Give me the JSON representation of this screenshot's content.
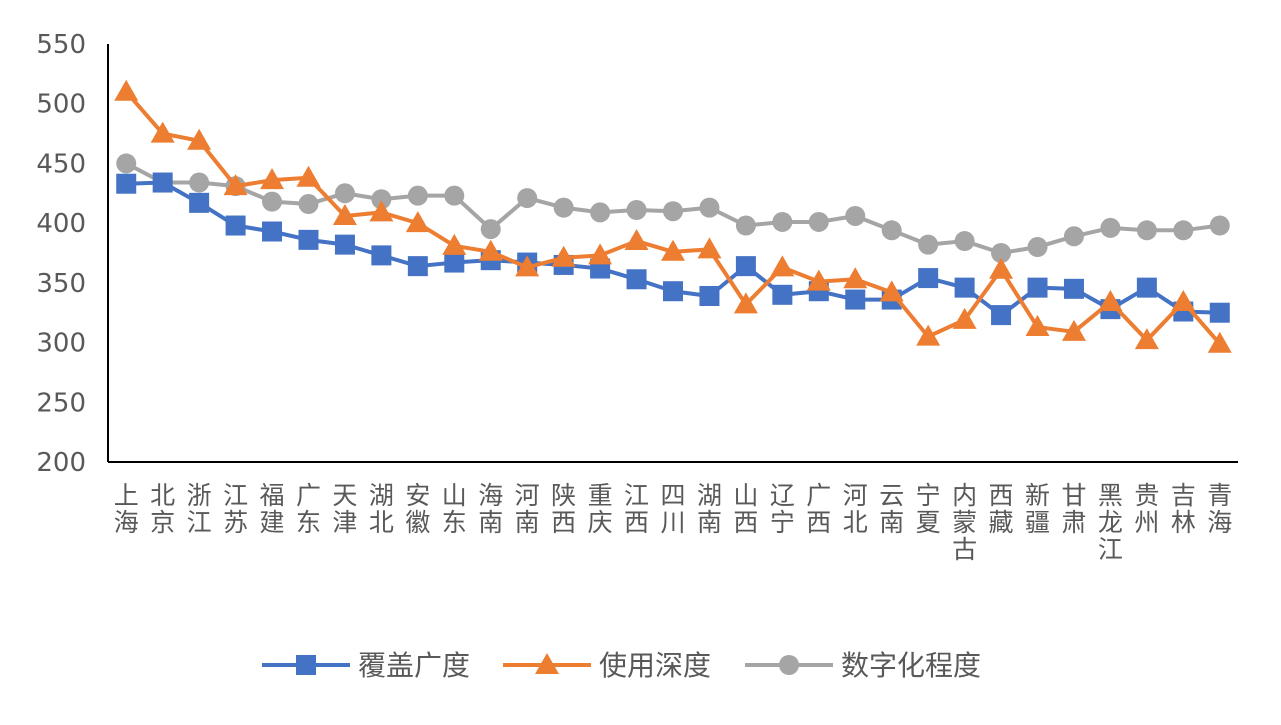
{
  "chart_data": {
    "type": "line",
    "title": "",
    "xlabel": "",
    "ylabel": "",
    "ylim": [
      200,
      550
    ],
    "yticks": [
      200,
      250,
      300,
      350,
      400,
      450,
      500,
      550
    ],
    "grid": false,
    "legend_position": "bottom",
    "categories": [
      "上海",
      "北京",
      "浙江",
      "江苏",
      "福建",
      "广东",
      "天津",
      "湖北",
      "安徽",
      "山东",
      "海南",
      "河南",
      "陕西",
      "重庆",
      "江西",
      "四川",
      "湖南",
      "山西",
      "辽宁",
      "广西",
      "河北",
      "云南",
      "宁夏",
      "内蒙古",
      "西藏",
      "新疆",
      "甘肃",
      "黑龙江",
      "贵州",
      "吉林",
      "青海"
    ],
    "series": [
      {
        "name": "覆盖广度",
        "color": "#4472C4",
        "marker": "square",
        "values": [
          433,
          434,
          417,
          398,
          393,
          386,
          382,
          373,
          364,
          367,
          369,
          367,
          365,
          362,
          353,
          343,
          339,
          364,
          340,
          343,
          336,
          336,
          354,
          346,
          323,
          346,
          345,
          328,
          346,
          326,
          325
        ]
      },
      {
        "name": "使用深度",
        "color": "#ED7D31",
        "marker": "triangle",
        "values": [
          510,
          475,
          469,
          431,
          436,
          438,
          406,
          409,
          400,
          381,
          376,
          363,
          371,
          373,
          385,
          376,
          378,
          332,
          363,
          351,
          353,
          342,
          305,
          319,
          361,
          313,
          309,
          334,
          302,
          334,
          299
        ]
      },
      {
        "name": "数字化程度",
        "color": "#A5A5A5",
        "marker": "circle",
        "values": [
          450,
          434,
          434,
          431,
          418,
          416,
          425,
          420,
          423,
          423,
          395,
          421,
          413,
          409,
          411,
          410,
          413,
          398,
          401,
          401,
          406,
          394,
          382,
          385,
          375,
          380,
          389,
          396,
          394,
          394,
          398
        ]
      }
    ]
  }
}
